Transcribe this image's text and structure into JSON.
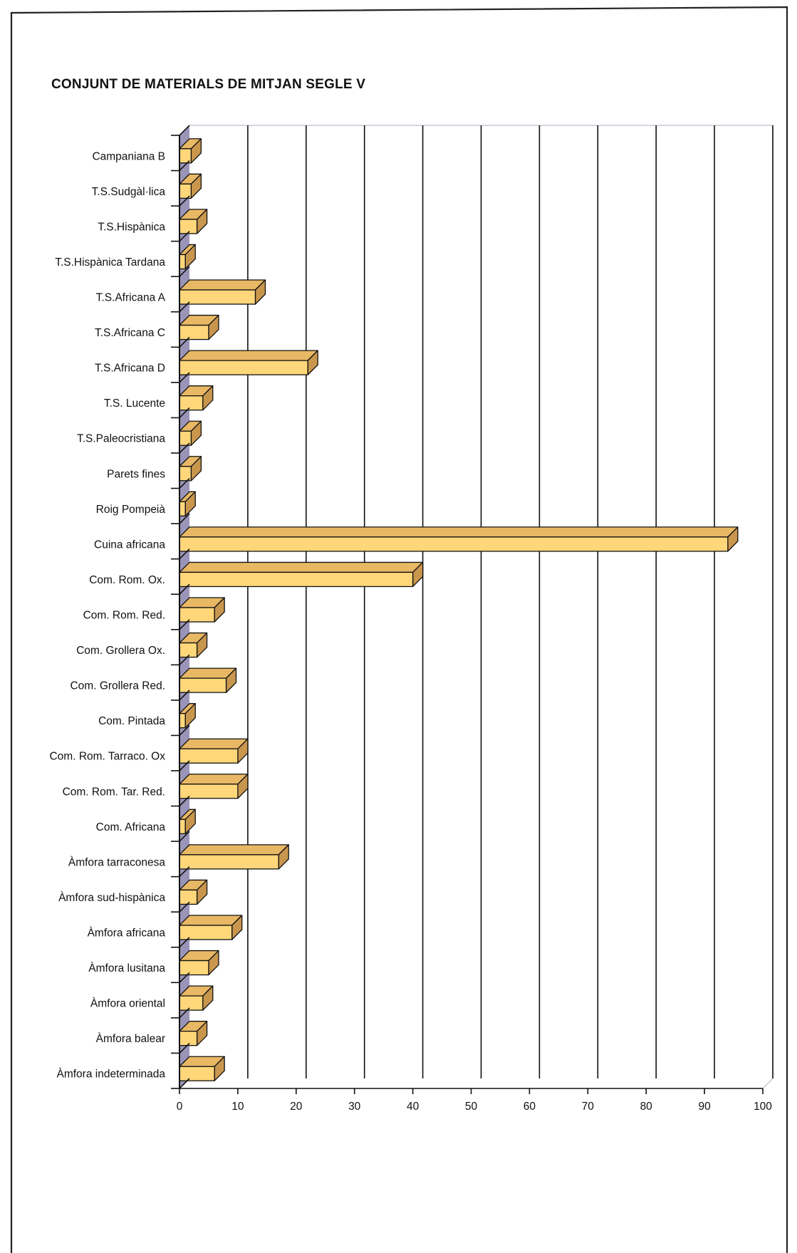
{
  "chart_data": {
    "type": "bar",
    "orientation": "horizontal",
    "title": "CONJUNT DE MATERIALS DE MITJAN SEGLE V",
    "categories": [
      "Campaniana B",
      "T.S.Sudgàl·lica",
      "T.S.Hispànica",
      "T.S.Hispànica Tardana",
      "T.S.Africana A",
      "T.S.Africana C",
      "T.S.Africana D",
      "T.S. Lucente",
      "T.S.Paleocristiana",
      "Parets fines",
      "Roig Pompeià",
      "Cuina africana",
      "Com. Rom. Ox.",
      "Com. Rom. Red.",
      "Com. Grollera Ox.",
      "Com. Grollera Red.",
      "Com. Pintada",
      "Com. Rom. Tarraco. Ox",
      "Com. Rom. Tar. Red.",
      "Com. Africana",
      "Àmfora tarraconesa",
      "Àmfora sud-hispànica",
      "Àmfora africana",
      "Àmfora lusitana",
      "Àmfora oriental",
      "Àmfora balear",
      "Àmfora indeterminada"
    ],
    "values": [
      2,
      2,
      3,
      1,
      13,
      5,
      22,
      4,
      2,
      2,
      1,
      94,
      40,
      6,
      3,
      8,
      1,
      10,
      10,
      1,
      17,
      3,
      9,
      5,
      4,
      3,
      6
    ],
    "xlim": [
      0,
      100
    ],
    "xticks": [
      "0",
      "10",
      "20",
      "30",
      "40",
      "50",
      "60",
      "70",
      "80",
      "90",
      "100"
    ],
    "grid": true,
    "bar_color": "#FFD77A",
    "bar_top_color": "#E8B865",
    "bar_side_color": "#C9964E",
    "back_wall_color": "#9A95B8"
  }
}
